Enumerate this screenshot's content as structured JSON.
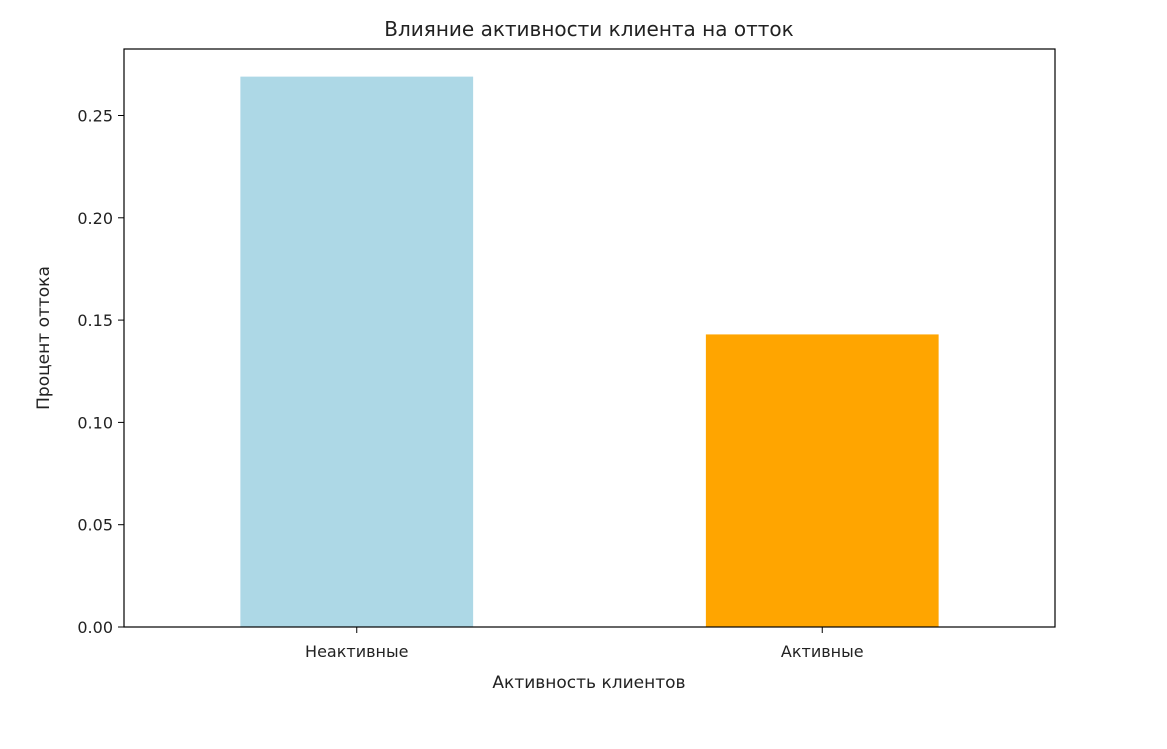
{
  "chart_data": {
    "type": "bar",
    "title": "Влияние активности клиента на отток",
    "xlabel": "Активность клиентов",
    "ylabel": "Процент оттока",
    "categories": [
      "Неактивные",
      "Активные"
    ],
    "values": [
      0.269,
      0.143
    ],
    "colors": [
      "#add8e6",
      "#ffa500"
    ],
    "ylim": [
      0,
      0.2825
    ],
    "yticks": [
      0.0,
      0.05,
      0.1,
      0.15,
      0.2,
      0.25
    ],
    "ytick_labels": [
      "0.00",
      "0.05",
      "0.10",
      "0.15",
      "0.20",
      "0.25"
    ],
    "grid": false,
    "legend": "none"
  }
}
